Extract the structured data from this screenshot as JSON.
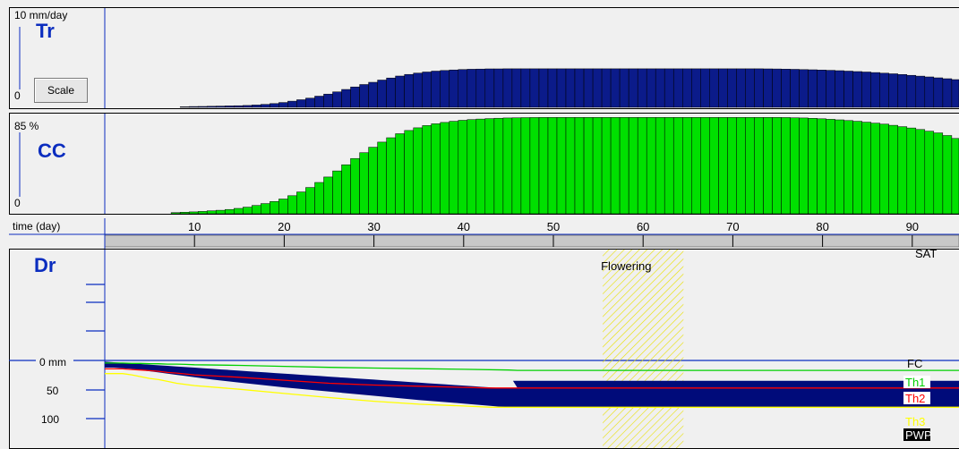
{
  "tr_panel": {
    "title": "Tr",
    "unit_label": "10 mm/day",
    "zero_label": "0",
    "scale_button": "Scale"
  },
  "cc_panel": {
    "title": "CC",
    "unit_label": "85 %",
    "zero_label": "0"
  },
  "time_axis": {
    "label": "time (day)",
    "ticks": [
      "10",
      "20",
      "30",
      "40",
      "50",
      "60",
      "70",
      "80",
      "90"
    ]
  },
  "dr_panel": {
    "title": "Dr",
    "axis_labels": {
      "zero": "0 mm",
      "fifty": "50",
      "hundred": "100"
    },
    "annotation": "Flowering",
    "legend": {
      "sat": "SAT",
      "fc": "FC",
      "th1": "Th1",
      "th2": "Th2",
      "th3": "Th3",
      "pwp": "PWP"
    }
  },
  "colors": {
    "tr_bars": "#0b1b8a",
    "cc_bars": "#00e000",
    "dr_fill": "#000b7a",
    "th1": "#00d000",
    "th2": "#ff0000",
    "th3": "#ffff00",
    "axis": "#0b2dbf"
  },
  "chart_data": [
    {
      "type": "bar",
      "name": "Tr",
      "ylabel": "mm/day",
      "ylim": [
        0,
        10
      ],
      "x_start_day": 1,
      "values": [
        0,
        0,
        0,
        0,
        0,
        0,
        0,
        0,
        0.06,
        0.09,
        0.1,
        0.12,
        0.14,
        0.16,
        0.18,
        0.21,
        0.26,
        0.33,
        0.42,
        0.54,
        0.69,
        0.85,
        1.03,
        1.25,
        1.48,
        1.73,
        2.0,
        2.28,
        2.55,
        2.8,
        3.05,
        3.28,
        3.5,
        3.68,
        3.83,
        3.95,
        4.05,
        4.12,
        4.18,
        4.23,
        4.26,
        4.28,
        4.3,
        4.3,
        4.31,
        4.31,
        4.31,
        4.31,
        4.31,
        4.31,
        4.31,
        4.31,
        4.31,
        4.31,
        4.31,
        4.31,
        4.31,
        4.31,
        4.31,
        4.31,
        4.31,
        4.31,
        4.31,
        4.31,
        4.31,
        4.31,
        4.31,
        4.31,
        4.31,
        4.31,
        4.31,
        4.31,
        4.31,
        4.3,
        4.29,
        4.27,
        4.25,
        4.22,
        4.2,
        4.17,
        4.14,
        4.1,
        4.05,
        4.0,
        3.95,
        3.89,
        3.82,
        3.75,
        3.67,
        3.58,
        3.49,
        3.4,
        3.3,
        3.2,
        3.1
      ]
    },
    {
      "type": "bar",
      "name": "CC",
      "ylabel": "%",
      "ylim": [
        0,
        85
      ],
      "x_start_day": 1,
      "values": [
        0,
        0,
        0,
        0,
        0,
        0,
        0,
        1.0,
        1.3,
        1.6,
        2.0,
        2.5,
        3.0,
        3.7,
        4.6,
        5.7,
        7.1,
        8.7,
        10.5,
        12.6,
        15.5,
        18.7,
        22.5,
        26.8,
        31.5,
        36.7,
        42.0,
        47.3,
        52.3,
        57.0,
        61.3,
        65.1,
        68.5,
        71.3,
        73.6,
        75.5,
        77.0,
        78.2,
        79.2,
        80.0,
        80.6,
        81.1,
        81.5,
        81.8,
        82.0,
        82.2,
        82.3,
        82.4,
        82.5,
        82.5,
        82.5,
        82.5,
        82.5,
        82.5,
        82.5,
        82.5,
        82.5,
        82.5,
        82.5,
        82.5,
        82.5,
        82.5,
        82.5,
        82.5,
        82.5,
        82.5,
        82.5,
        82.5,
        82.5,
        82.5,
        82.5,
        82.5,
        82.5,
        82.5,
        82.5,
        82.4,
        82.2,
        82.0,
        81.7,
        81.3,
        80.9,
        80.4,
        79.8,
        79.2,
        78.4,
        77.6,
        76.7,
        75.7,
        74.6,
        73.4,
        72.1,
        70.7,
        69.2,
        67.0,
        64.5
      ]
    },
    {
      "type": "area",
      "name": "Dr",
      "ylabel": "mm",
      "ylim": [
        0,
        100
      ],
      "depletion_x": [
        0,
        1,
        2,
        3,
        4,
        5,
        6,
        7,
        8,
        9,
        10,
        12,
        15,
        20,
        25,
        30,
        35,
        40,
        44,
        45,
        50,
        60,
        70,
        80,
        90,
        93
      ],
      "depletion_y": [
        12,
        12,
        13,
        14,
        16,
        18,
        20,
        22,
        24,
        26,
        28,
        32,
        37,
        45,
        52,
        59,
        66,
        72,
        77,
        78,
        78,
        78,
        78,
        78,
        78,
        78
      ],
      "fc_stair_y": [
        2,
        3,
        4,
        5,
        6,
        7,
        8,
        9,
        10,
        11,
        12,
        13,
        14,
        15,
        16,
        17,
        18,
        19,
        20,
        21,
        22,
        23,
        24,
        25,
        26,
        27,
        28,
        29,
        30,
        31,
        32,
        33,
        34,
        35,
        36,
        37,
        38,
        39,
        40,
        41,
        42,
        43,
        44,
        45,
        46,
        46,
        46
      ],
      "th1_x": [
        0,
        1,
        2,
        3,
        4,
        5,
        6,
        7,
        8,
        9,
        10,
        15,
        20,
        25,
        30,
        35,
        40,
        45,
        46
      ],
      "th1_y": [
        8,
        8,
        8,
        9,
        9,
        10,
        10,
        11,
        11,
        12,
        13,
        15,
        18,
        21,
        23,
        25,
        27,
        29,
        30
      ],
      "th2_x": [
        0,
        1,
        2,
        3,
        4,
        5,
        6,
        7,
        8,
        10,
        15,
        20,
        25,
        30,
        35,
        40,
        43,
        44,
        93
      ],
      "th2_y": [
        14,
        14,
        14,
        15,
        16,
        17,
        18,
        20,
        21,
        24,
        28,
        33,
        38,
        41,
        43,
        45,
        46,
        46,
        46
      ],
      "th3_x": [
        0,
        1,
        2,
        3,
        4,
        5,
        6,
        7,
        8,
        10,
        15,
        20,
        25,
        30,
        35,
        40,
        43,
        44,
        93
      ],
      "th3_y": [
        22,
        22,
        22,
        24,
        27,
        30,
        32,
        35,
        38,
        42,
        48,
        55,
        62,
        68,
        73,
        76,
        78,
        78,
        78
      ],
      "flowering_days": [
        56,
        65
      ]
    }
  ]
}
